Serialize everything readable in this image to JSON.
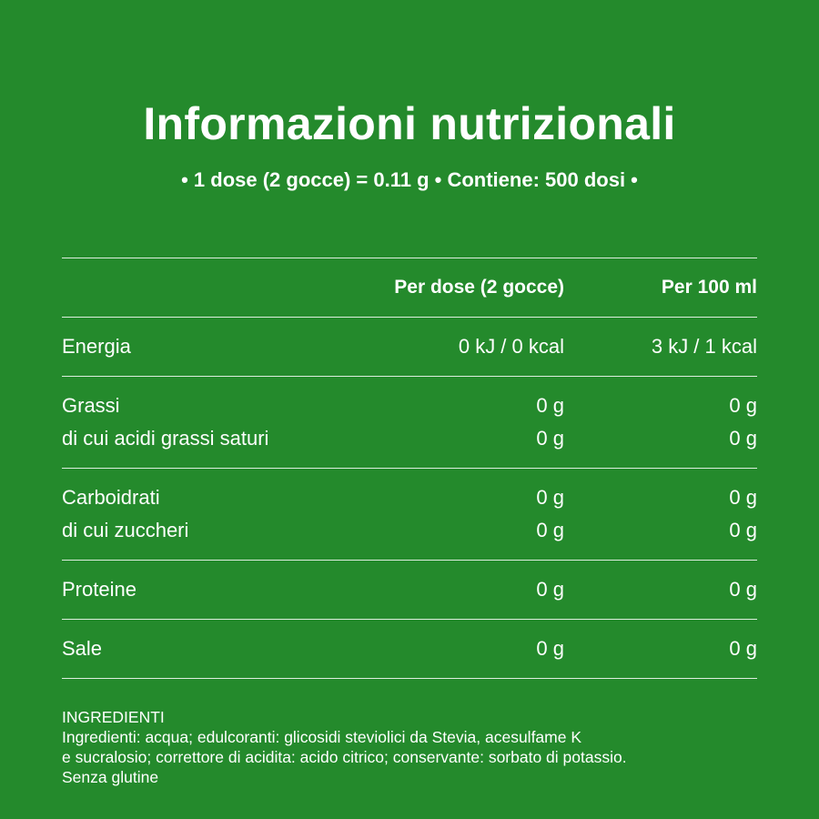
{
  "title": "Informazioni nutrizionali",
  "subtitle": "• 1 dose (2 gocce) = 0.11 g • Contiene: 500 dosi •",
  "table": {
    "headers": {
      "per_dose": "Per dose (2 gocce)",
      "per_100": "Per 100 ml"
    },
    "sections": [
      {
        "rows": [
          {
            "label": "Energia",
            "per_dose": "0 kJ / 0 kcal",
            "per_100": "3 kJ / 1 kcal"
          }
        ]
      },
      {
        "rows": [
          {
            "label": "Grassi",
            "per_dose": "0 g",
            "per_100": "0 g"
          },
          {
            "label": "di cui acidi grassi saturi",
            "per_dose": "0 g",
            "per_100": "0 g"
          }
        ]
      },
      {
        "rows": [
          {
            "label": "Carboidrati",
            "per_dose": "0 g",
            "per_100": "0 g"
          },
          {
            "label": "di cui zuccheri",
            "per_dose": "0 g",
            "per_100": "0 g"
          }
        ]
      },
      {
        "rows": [
          {
            "label": "Proteine",
            "per_dose": "0 g",
            "per_100": "0 g"
          }
        ]
      },
      {
        "rows": [
          {
            "label": "Sale",
            "per_dose": "0 g",
            "per_100": "0 g"
          }
        ]
      }
    ]
  },
  "ingredients": {
    "heading": "INGREDIENTI",
    "line1": "Ingredienti: acqua; edulcoranti: glicosidi steviolici da Stevia, acesulfame K",
    "line2": "e sucralosio; correttore di acidita: acido citrico; conservante: sorbato di potassio.",
    "line3": "Senza glutine"
  },
  "colors": {
    "background": "#248a2c",
    "text": "#ffffff"
  }
}
